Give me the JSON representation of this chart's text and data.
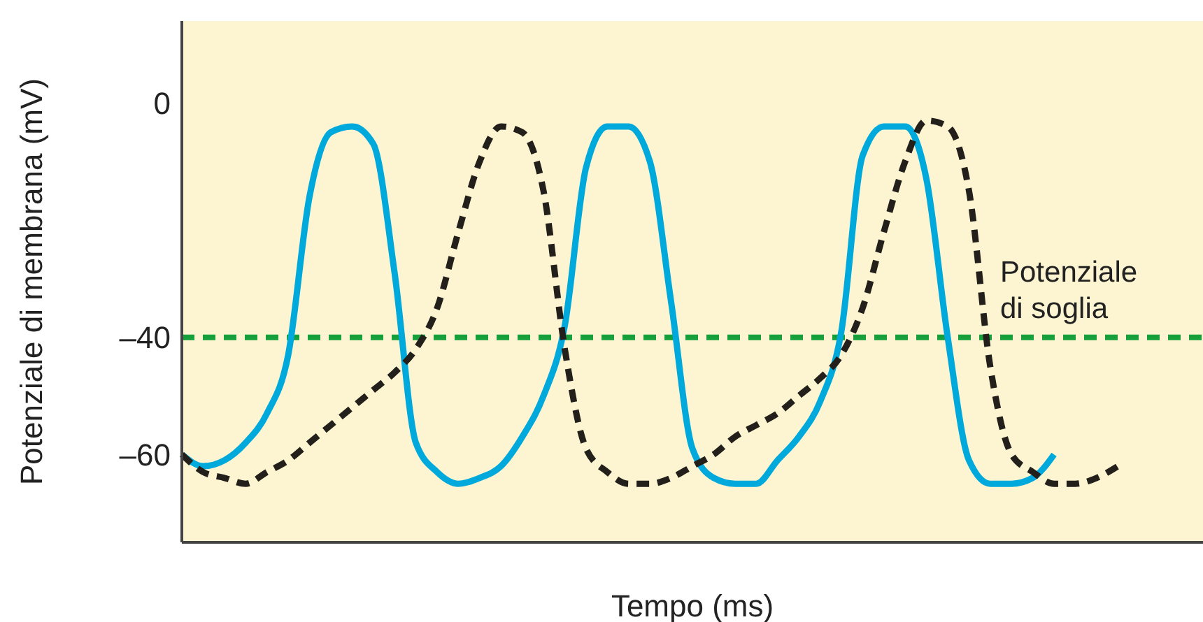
{
  "chart_data": {
    "type": "line",
    "xlabel": "Tempo (ms)",
    "ylabel": "Potenziale di membrana (mV)",
    "categories": [
      null,
      null,
      null,
      null,
      null,
      null,
      null,
      null,
      null,
      null,
      null,
      null,
      null,
      null,
      null,
      null,
      null,
      null,
      null,
      null,
      null,
      null,
      null,
      null,
      null,
      null,
      null,
      null,
      null,
      null,
      null,
      null,
      null,
      null,
      null,
      null,
      null,
      null,
      null,
      null,
      null,
      null,
      null,
      null,
      null,
      null,
      null,
      null,
      null
    ],
    "series": [
      {
        "color": "#00a9dc",
        "line_style": "solid",
        "values": [
          -60,
          -62,
          -61,
          -58,
          -53,
          -43,
          -16,
          -5,
          -4,
          -7,
          -29,
          -58,
          -63,
          -65,
          -64,
          -62,
          -57,
          -50,
          -38,
          -11,
          -4,
          -4,
          -10,
          -34,
          -59,
          -64,
          -65,
          -65,
          -61,
          -57,
          -51,
          -39,
          -9,
          -4,
          -4,
          -13,
          -40,
          -61,
          -65,
          -65,
          -64,
          -60,
          null,
          null,
          null,
          null,
          null,
          null,
          null
        ]
      },
      {
        "color": "#231f1a",
        "line_style": "dashed",
        "values": [
          -60,
          -63,
          -64,
          -65,
          -63,
          -61,
          -58,
          -55,
          -52,
          -49,
          -46,
          -42,
          -35,
          -22,
          -10,
          -4,
          -5,
          -15,
          -42,
          -59,
          -63,
          -65,
          -65,
          -64,
          -62,
          -60,
          -57,
          -55,
          -53,
          -50,
          -47,
          -43,
          -35,
          -22,
          -10,
          -3,
          -4,
          -15,
          -45,
          -60,
          -63,
          -65,
          -65,
          -64,
          -62,
          null,
          null,
          null,
          null
        ]
      }
    ],
    "ylim": [
      -75,
      14
    ],
    "yticks": [
      0,
      {
        "value": -40,
        "label": "–40"
      },
      {
        "value": -60,
        "label": "–60"
      }
    ],
    "tick_labels": "y",
    "grid": false,
    "ref_lines": [
      {
        "axis": "y",
        "value": -40,
        "label": "Potenziale di soglia",
        "color": "#16a03c",
        "line_style": "dashed"
      }
    ]
  }
}
